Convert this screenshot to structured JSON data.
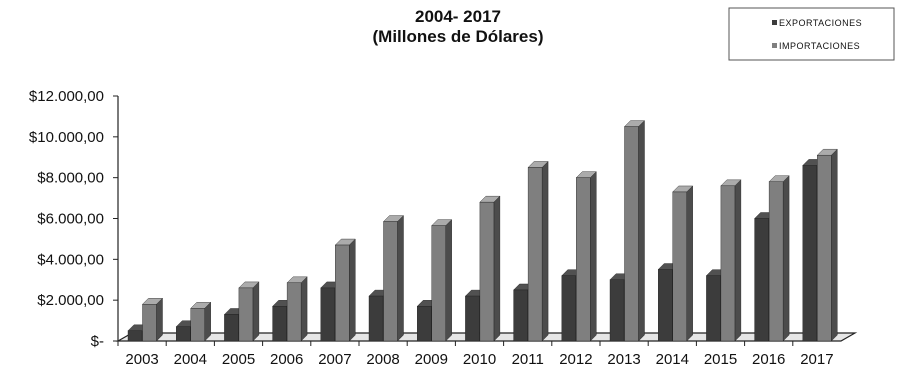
{
  "chart_data": {
    "type": "bar",
    "title": "2004- 2017",
    "subtitle": "(Millones de Dólares)",
    "xlabel": "",
    "ylabel": "",
    "ylim": [
      0,
      12000
    ],
    "y_ticks": [
      0,
      2000,
      4000,
      6000,
      8000,
      10000,
      12000
    ],
    "y_tick_labels": [
      "$-",
      "$2.000,00",
      "$4.000,00",
      "$6.000,00",
      "$8.000,00",
      "$10.000,00",
      "$12.000,00"
    ],
    "categories": [
      "2003",
      "2004",
      "2005",
      "2006",
      "2007",
      "2008",
      "2009",
      "2010",
      "2011",
      "2012",
      "2013",
      "2014",
      "2015",
      "2016",
      "2017"
    ],
    "series": [
      {
        "name": "EXPORTACIONES",
        "color": "#3c3c3c",
        "values": [
          500,
          700,
          1300,
          1700,
          2600,
          2200,
          1700,
          2200,
          2500,
          3200,
          3000,
          3500,
          3200,
          6000,
          8600
        ]
      },
      {
        "name": "IMPORTACIONES",
        "color": "#7f7f7f",
        "values": [
          1800,
          1600,
          2600,
          2850,
          4700,
          5850,
          5650,
          6800,
          8500,
          8000,
          10500,
          7300,
          7600,
          7800,
          9100
        ]
      }
    ],
    "legend": {
      "position": "top-right"
    },
    "grid": false,
    "style": "3d-bars"
  }
}
